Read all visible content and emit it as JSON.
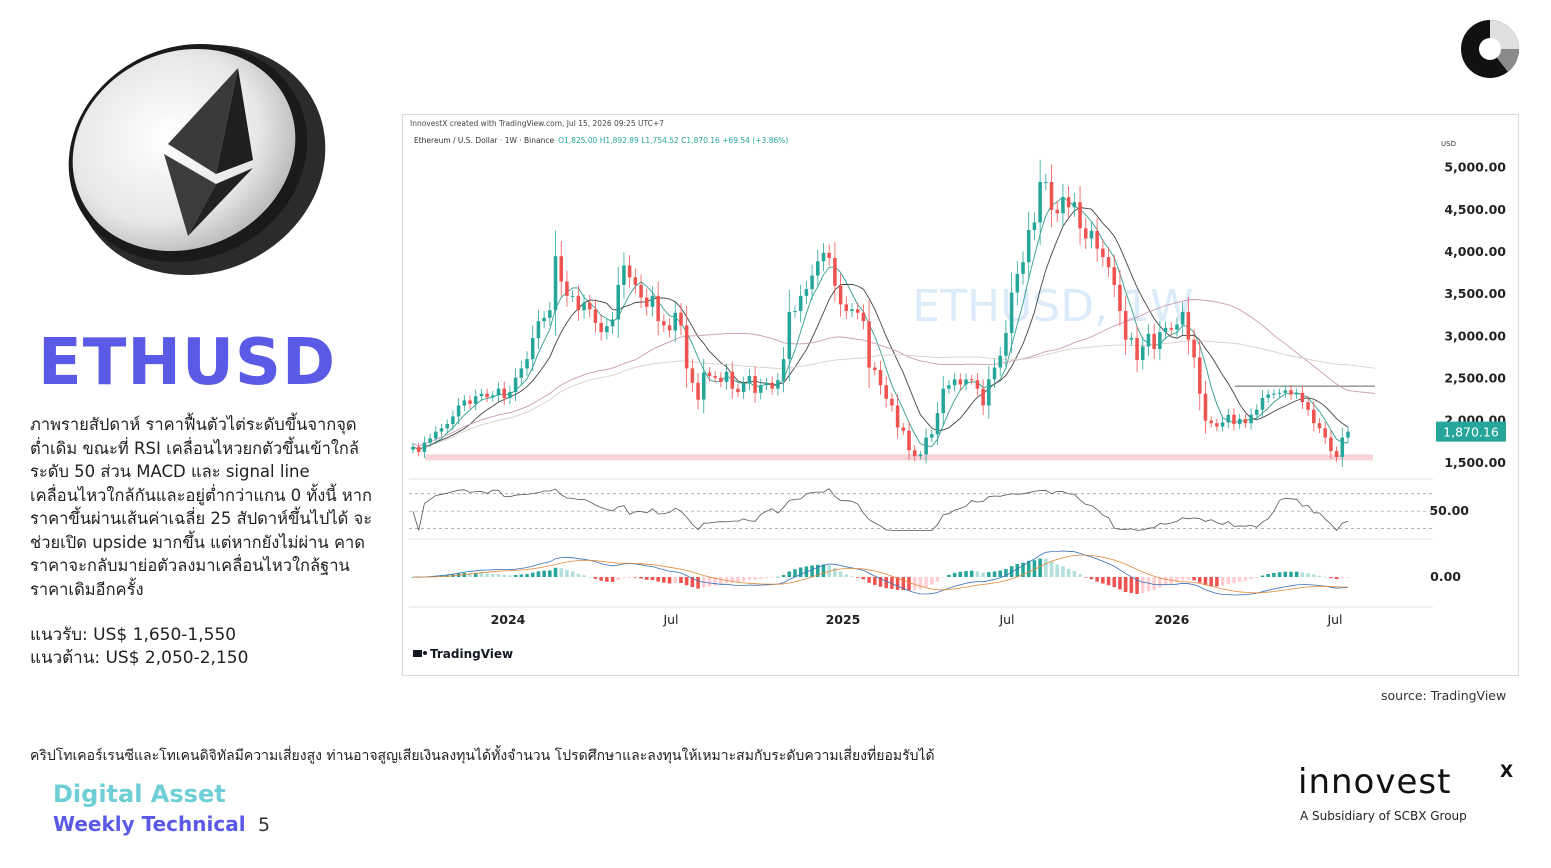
{
  "ticker": "ETHUSD",
  "description": "ภาพรายสัปดาห์ ราคาฟื้นตัวไต่ระดับขึ้นจากจุดต่ำเดิม ขณะที่ RSI เคลื่อนไหวยกตัวขึ้นเข้าใกล้ระดับ 50 ส่วน MACD และ signal line เคลื่อนไหวใกล้กันและอยู่ต่ำกว่าแกน 0 ทั้งนี้ หากราคาขึ้นผ่านเส้นค่าเฉลี่ย 25 สัปดาห์ขึ้นไปได้ จะช่วยเปิด upside มากขึ้น แต่หากยังไม่ผ่าน คาดราคาจะกลับมาย่อตัวลงมาเคลื่อนไหวใกล้ฐานราคาเดิมอีกครั้ง",
  "support": "แนวรับ: US$ 1,650-1,550",
  "resistance": "แนวต้าน: US$ 2,050-2,150",
  "source": "source: TradingView",
  "disclaimer": "คริปโทเคอร์เรนซีและโทเคนดิจิทัลมีความเสี่ยงสูง ท่านอาจสูญเสียเงินลงทุนได้ทั้งจำนวน โปรดศึกษาและลงทุนให้เหมาะสมกับระดับความเสี่ยงที่ยอมรับได้",
  "footer": {
    "line1": "Digital Asset",
    "line2": "Weekly Technical",
    "page": "5"
  },
  "brand": {
    "name": "innovest",
    "mark": "X",
    "sub": "A Subsidiary of SCBX Group"
  },
  "colors": {
    "accent": "#5a5ae6",
    "teal": "#6fcfd6",
    "up": "#26a69a",
    "down": "#ef5350"
  },
  "chart_data": {
    "type": "candlestick",
    "credit": "InnovestX created with TradingView.com, Jul 15, 2026 09:25 UTC+7",
    "header": "Ethereum / U.S. Dollar · 1W · Binance",
    "ohlc_label": "O1,825.00 H1,892.89 L1,754.52 C1,870.16 +69.54 (+3.86%)",
    "watermark": "ETHUSD, 1W",
    "currency": "USD",
    "y_ticks": [
      "5,000.00",
      "4,500.00",
      "4,000.00",
      "3,500.00",
      "3,000.00",
      "2,500.00",
      "2,000.00",
      "1,500.00"
    ],
    "y_tick_values": [
      5000,
      4500,
      4000,
      3500,
      3000,
      2500,
      2000,
      1500
    ],
    "ylim": [
      1380,
      5150
    ],
    "last_price": "1,870.16",
    "rsi_label": "50.00",
    "macd_label": "0.00",
    "x_labels": [
      "2024",
      "Jul",
      "2025",
      "Jul",
      "2026",
      "Jul"
    ],
    "logo": "TradingView",
    "support_zone": [
      1530,
      1600
    ],
    "resistance_line": 2410,
    "closes": [
      1690,
      1630,
      1740,
      1790,
      1870,
      1910,
      1960,
      2050,
      2180,
      2240,
      2200,
      2290,
      2320,
      2280,
      2300,
      2380,
      2270,
      2340,
      2510,
      2620,
      2730,
      2980,
      3180,
      3220,
      3310,
      3950,
      3650,
      3480,
      3480,
      3310,
      3400,
      3320,
      3160,
      3050,
      3120,
      3200,
      3610,
      3840,
      3700,
      3610,
      3460,
      3350,
      3480,
      3180,
      3130,
      3070,
      3280,
      3130,
      2620,
      2450,
      2250,
      2570,
      2530,
      2510,
      2460,
      2580,
      2380,
      2340,
      2440,
      2530,
      2330,
      2420,
      2450,
      2380,
      2480,
      2730,
      3290,
      3300,
      3480,
      3560,
      3720,
      3890,
      3990,
      3930,
      3600,
      3380,
      3300,
      3320,
      3280,
      3180,
      2630,
      2600,
      2420,
      2260,
      2180,
      1920,
      1880,
      1650,
      1580,
      1600,
      1800,
      1840,
      2090,
      2380,
      2420,
      2490,
      2430,
      2490,
      2480,
      2380,
      2180,
      2490,
      2630,
      2770,
      3040,
      3520,
      3740,
      3880,
      4260,
      4350,
      4830,
      4830,
      4500,
      4460,
      4650,
      4530,
      4590,
      4280,
      4160,
      4250,
      4040,
      3940,
      3820,
      3610,
      3300,
      2960,
      2980,
      2720,
      2880,
      3030,
      2850,
      3050,
      3100,
      3080,
      3140,
      3290,
      2960,
      2750,
      2320,
      2000,
      1970,
      1930,
      1980,
      2070,
      1960,
      2020,
      1970,
      2070,
      2130,
      2270,
      2310,
      2320,
      2330,
      2360,
      2310,
      2330,
      2220,
      2130,
      1970,
      1910,
      1800,
      1640,
      1570,
      1800,
      1870
    ]
  }
}
